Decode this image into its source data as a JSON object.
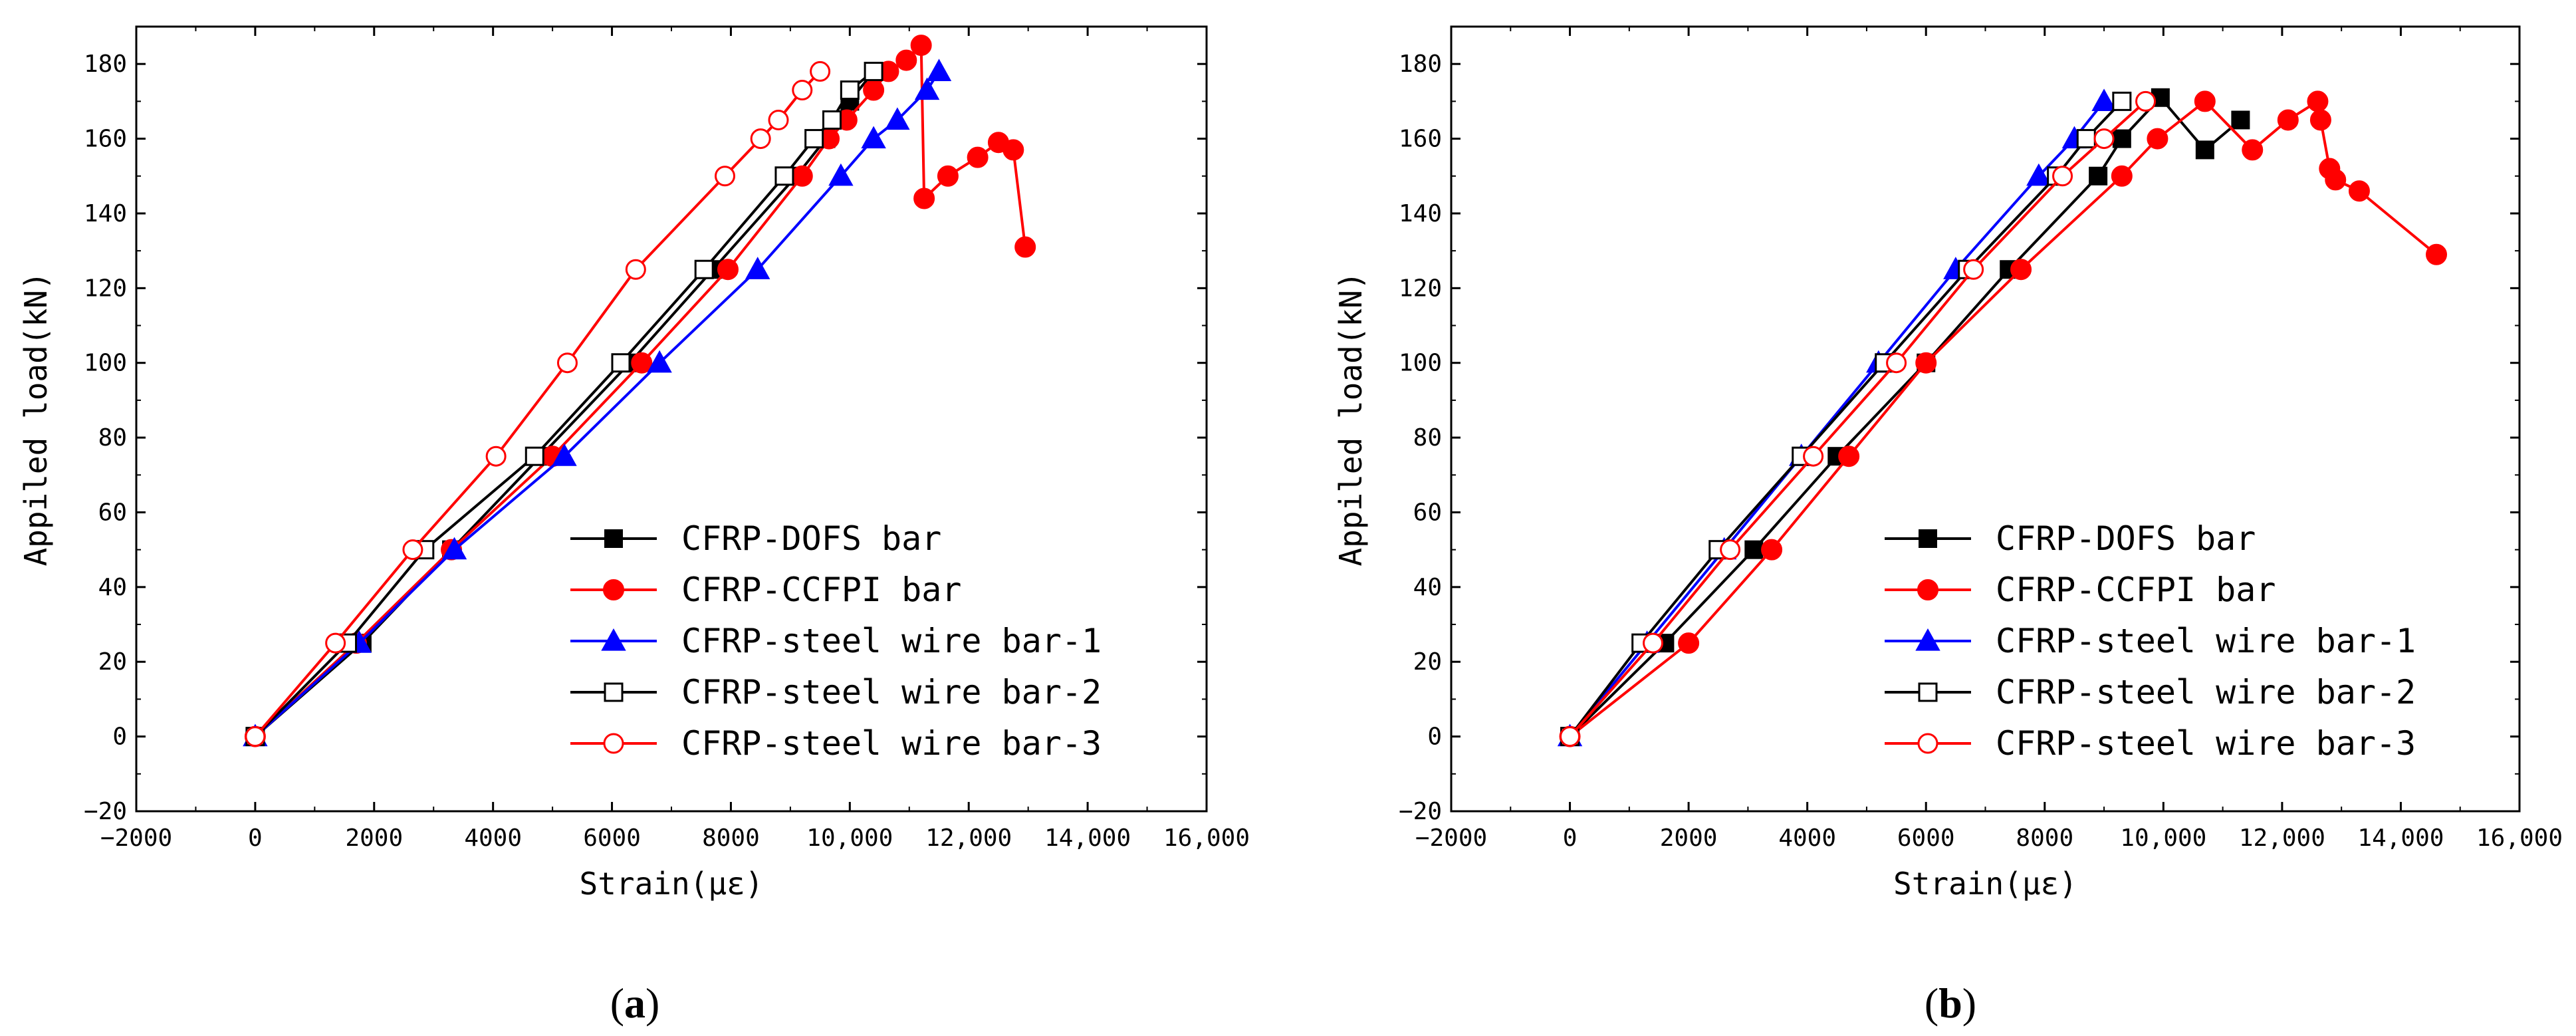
{
  "chart_data": [
    {
      "panel": "a",
      "type": "line",
      "xlabel": "Strain(με)",
      "ylabel": "Appiled load(kN)",
      "xlim": [
        -2000,
        16000
      ],
      "ylim": [
        -20,
        190
      ],
      "xticks": [
        -2000,
        0,
        2000,
        4000,
        6000,
        8000,
        10000,
        12000,
        14000,
        16000
      ],
      "xtick_labels": [
        "−2000",
        "0",
        "2000",
        "4000",
        "6000",
        "8000",
        "10,000",
        "12,000",
        "14,000",
        "16,000"
      ],
      "yticks": [
        -20,
        0,
        20,
        40,
        60,
        80,
        100,
        120,
        140,
        160,
        180
      ],
      "ytick_labels": [
        "−20",
        "0",
        "20",
        "40",
        "60",
        "80",
        "100",
        "120",
        "140",
        "160",
        "180"
      ],
      "legend_position": "bottom-right",
      "panel_label_open": "(",
      "panel_label_letter": "a",
      "panel_label_close": ")",
      "series": [
        {
          "name": "CFRP-DOFS bar",
          "color": "#000000",
          "marker": "filled-square",
          "points": [
            [
              0,
              0
            ],
            [
              1800,
              25
            ],
            [
              3300,
              50
            ],
            [
              4800,
              75
            ],
            [
              6300,
              100
            ],
            [
              7700,
              125
            ],
            [
              9100,
              150
            ],
            [
              9600,
              160
            ],
            [
              10000,
              170
            ],
            [
              10400,
              178
            ]
          ]
        },
        {
          "name": "CFRP-CCFPI bar",
          "color": "#ff0000",
          "marker": "filled-circle",
          "points": [
            [
              0,
              0
            ],
            [
              1700,
              25
            ],
            [
              3300,
              50
            ],
            [
              5000,
              75
            ],
            [
              6500,
              100
            ],
            [
              7950,
              125
            ],
            [
              9200,
              150
            ],
            [
              9650,
              160
            ],
            [
              9950,
              165
            ],
            [
              10400,
              173
            ],
            [
              10650,
              178
            ],
            [
              10950,
              181
            ],
            [
              11200,
              185
            ],
            [
              11250,
              144
            ],
            [
              11650,
              150
            ],
            [
              12150,
              155
            ],
            [
              12500,
              159
            ],
            [
              12750,
              157
            ],
            [
              12950,
              131
            ]
          ]
        },
        {
          "name": "CFRP-steel wire bar-1",
          "color": "#0000ff",
          "marker": "filled-triangle",
          "points": [
            [
              0,
              0
            ],
            [
              1750,
              25
            ],
            [
              3350,
              50
            ],
            [
              5200,
              75
            ],
            [
              6800,
              100
            ],
            [
              8450,
              125
            ],
            [
              9850,
              150
            ],
            [
              10400,
              160
            ],
            [
              10800,
              165
            ],
            [
              11300,
              173
            ],
            [
              11500,
              178
            ]
          ]
        },
        {
          "name": "CFRP-steel wire bar-2",
          "color": "#000000",
          "marker": "open-square",
          "points": [
            [
              0,
              0
            ],
            [
              1550,
              25
            ],
            [
              2850,
              50
            ],
            [
              4700,
              75
            ],
            [
              6150,
              100
            ],
            [
              7550,
              125
            ],
            [
              8900,
              150
            ],
            [
              9400,
              160
            ],
            [
              9700,
              165
            ],
            [
              10000,
              173
            ],
            [
              10400,
              178
            ]
          ]
        },
        {
          "name": "CFRP-steel wire bar-3",
          "color": "#ff0000",
          "marker": "open-circle",
          "points": [
            [
              0,
              0
            ],
            [
              1350,
              25
            ],
            [
              2650,
              50
            ],
            [
              4050,
              75
            ],
            [
              5250,
              100
            ],
            [
              6400,
              125
            ],
            [
              7900,
              150
            ],
            [
              8500,
              160
            ],
            [
              8800,
              165
            ],
            [
              9200,
              173
            ],
            [
              9500,
              178
            ]
          ]
        }
      ]
    },
    {
      "panel": "b",
      "type": "line",
      "xlabel": "Strain(με)",
      "ylabel": "Appiled load(kN)",
      "xlim": [
        -2000,
        16000
      ],
      "ylim": [
        -20,
        190
      ],
      "xticks": [
        -2000,
        0,
        2000,
        4000,
        6000,
        8000,
        10000,
        12000,
        14000,
        16000
      ],
      "xtick_labels": [
        "−2000",
        "0",
        "2000",
        "4000",
        "6000",
        "8000",
        "10,000",
        "12,000",
        "14,000",
        "16,000"
      ],
      "yticks": [
        -20,
        0,
        20,
        40,
        60,
        80,
        100,
        120,
        140,
        160,
        180
      ],
      "ytick_labels": [
        "−20",
        "0",
        "20",
        "40",
        "60",
        "80",
        "100",
        "120",
        "140",
        "160",
        "180"
      ],
      "legend_position": "bottom-right",
      "panel_label_open": "(",
      "panel_label_letter": "b",
      "panel_label_close": ")",
      "series": [
        {
          "name": "CFRP-DOFS bar",
          "color": "#000000",
          "marker": "filled-square",
          "points": [
            [
              0,
              0
            ],
            [
              1600,
              25
            ],
            [
              3100,
              50
            ],
            [
              4500,
              75
            ],
            [
              6000,
              100
            ],
            [
              7400,
              125
            ],
            [
              8900,
              150
            ],
            [
              9300,
              160
            ],
            [
              9950,
              171
            ],
            [
              10700,
              157
            ],
            [
              11300,
              165
            ]
          ]
        },
        {
          "name": "CFRP-CCFPI bar",
          "color": "#ff0000",
          "marker": "filled-circle",
          "points": [
            [
              0,
              0
            ],
            [
              2000,
              25
            ],
            [
              3400,
              50
            ],
            [
              4700,
              75
            ],
            [
              6000,
              100
            ],
            [
              7600,
              125
            ],
            [
              9300,
              150
            ],
            [
              9900,
              160
            ],
            [
              10700,
              170
            ],
            [
              11500,
              157
            ],
            [
              12100,
              165
            ],
            [
              12600,
              170
            ],
            [
              12650,
              165
            ],
            [
              12800,
              152
            ],
            [
              12900,
              149
            ],
            [
              13300,
              146
            ],
            [
              14600,
              129
            ]
          ]
        },
        {
          "name": "CFRP-steel wire bar-1",
          "color": "#0000ff",
          "marker": "filled-triangle",
          "points": [
            [
              0,
              0
            ],
            [
              1300,
              25
            ],
            [
              2600,
              50
            ],
            [
              3900,
              75
            ],
            [
              5200,
              100
            ],
            [
              6500,
              125
            ],
            [
              7900,
              150
            ],
            [
              8500,
              160
            ],
            [
              9000,
              170
            ]
          ]
        },
        {
          "name": "CFRP-steel wire bar-2",
          "color": "#000000",
          "marker": "open-square",
          "points": [
            [
              0,
              0
            ],
            [
              1200,
              25
            ],
            [
              2500,
              50
            ],
            [
              3900,
              75
            ],
            [
              5300,
              100
            ],
            [
              6700,
              125
            ],
            [
              8200,
              150
            ],
            [
              8700,
              160
            ],
            [
              9300,
              170
            ]
          ]
        },
        {
          "name": "CFRP-steel wire bar-3",
          "color": "#ff0000",
          "marker": "open-circle",
          "points": [
            [
              0,
              0
            ],
            [
              1400,
              25
            ],
            [
              2700,
              50
            ],
            [
              4100,
              75
            ],
            [
              5500,
              100
            ],
            [
              6800,
              125
            ],
            [
              8300,
              150
            ],
            [
              9000,
              160
            ],
            [
              9700,
              170
            ]
          ]
        }
      ]
    }
  ]
}
